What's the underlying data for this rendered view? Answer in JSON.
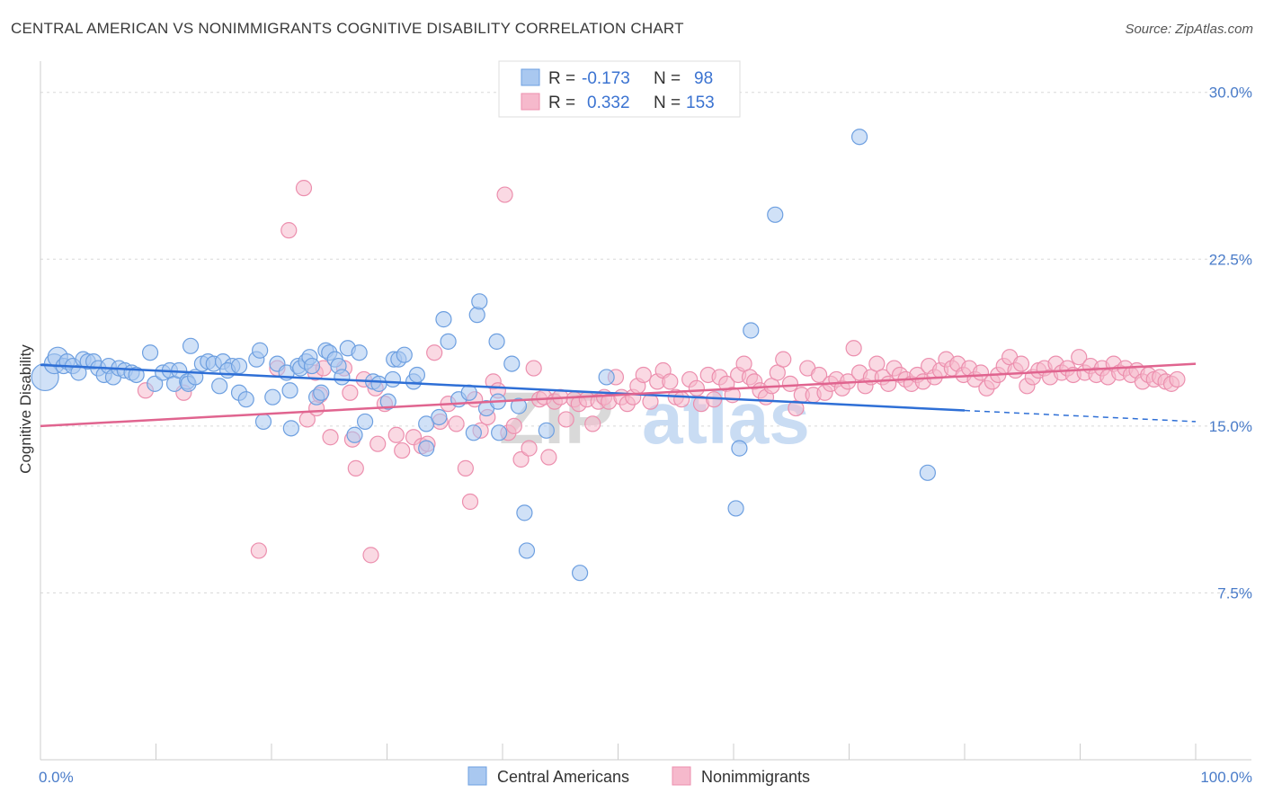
{
  "title": "CENTRAL AMERICAN VS NONIMMIGRANTS COGNITIVE DISABILITY CORRELATION CHART",
  "source": "Source: ZipAtlas.com",
  "watermark": {
    "zip": "ZIP",
    "atlas": "atlas"
  },
  "colors": {
    "blue_fill": "#a9c8f0",
    "blue_stroke": "#6d9fe0",
    "blue_line": "#2e6fd6",
    "pink_fill": "#f6b9cc",
    "pink_stroke": "#ec8fae",
    "pink_line": "#e0648f",
    "tick_text": "#4a7cc9",
    "grid": "#d8d8d8"
  },
  "legend": {
    "rows": [
      {
        "r_label": "R =",
        "r_value": "-0.173",
        "n_label": "N =",
        "n_value": "98"
      },
      {
        "r_label": "R =",
        "r_value": "0.332",
        "n_label": "N =",
        "n_value": "153"
      }
    ]
  },
  "bottom_legend": [
    "Central Americans",
    "Nonimmigrants"
  ],
  "chart_data": {
    "type": "scatter",
    "title": "CENTRAL AMERICAN VS NONIMMIGRANTS COGNITIVE DISABILITY CORRELATION CHART",
    "xlabel": "",
    "ylabel": "Cognitive Disability",
    "xlim": [
      0,
      100
    ],
    "ylim": [
      0,
      31
    ],
    "x_tick_labels": [
      "0.0%",
      "100.0%"
    ],
    "y_ticks": [
      7.5,
      15.0,
      22.5,
      30.0
    ],
    "y_tick_labels": [
      "7.5%",
      "15.0%",
      "22.5%",
      "30.0%"
    ],
    "grid": true,
    "legend_placement": "top-center",
    "series": [
      {
        "name": "Central Americans",
        "r": -0.173,
        "n": 98,
        "trend": {
          "x": [
            0,
            80
          ],
          "y": [
            17.75,
            15.7
          ],
          "dashed_extension_to_x": 100,
          "dashed_end_y": 15.2
        },
        "points": [
          [
            0.4,
            17.2
          ],
          [
            1.2,
            17.8
          ],
          [
            1.5,
            18.1
          ],
          [
            2.0,
            17.7
          ],
          [
            2.3,
            17.9
          ],
          [
            2.8,
            17.7
          ],
          [
            3.3,
            17.4
          ],
          [
            3.7,
            18.0
          ],
          [
            4.1,
            17.9
          ],
          [
            4.6,
            17.9
          ],
          [
            5.0,
            17.6
          ],
          [
            5.5,
            17.3
          ],
          [
            5.9,
            17.7
          ],
          [
            6.3,
            17.2
          ],
          [
            6.8,
            17.6
          ],
          [
            7.3,
            17.5
          ],
          [
            7.9,
            17.4
          ],
          [
            8.3,
            17.3
          ],
          [
            9.5,
            18.3
          ],
          [
            9.9,
            16.9
          ],
          [
            10.6,
            17.4
          ],
          [
            11.2,
            17.5
          ],
          [
            11.6,
            16.9
          ],
          [
            12.0,
            17.5
          ],
          [
            12.7,
            17.0
          ],
          [
            12.8,
            16.9
          ],
          [
            13.0,
            18.6
          ],
          [
            13.4,
            17.2
          ],
          [
            14.0,
            17.8
          ],
          [
            14.5,
            17.9
          ],
          [
            15.0,
            17.8
          ],
          [
            15.5,
            16.8
          ],
          [
            15.8,
            17.9
          ],
          [
            16.6,
            17.7
          ],
          [
            16.2,
            17.5
          ],
          [
            17.2,
            17.7
          ],
          [
            17.2,
            16.5
          ],
          [
            17.8,
            16.2
          ],
          [
            18.7,
            18.0
          ],
          [
            19.0,
            18.4
          ],
          [
            19.3,
            15.2
          ],
          [
            20.1,
            16.3
          ],
          [
            20.5,
            17.8
          ],
          [
            21.3,
            17.4
          ],
          [
            21.6,
            16.6
          ],
          [
            21.7,
            14.9
          ],
          [
            22.3,
            17.7
          ],
          [
            22.5,
            17.6
          ],
          [
            23.0,
            17.9
          ],
          [
            23.3,
            18.1
          ],
          [
            23.5,
            17.7
          ],
          [
            23.9,
            16.3
          ],
          [
            24.3,
            16.5
          ],
          [
            24.7,
            18.4
          ],
          [
            25.0,
            18.3
          ],
          [
            25.5,
            18.0
          ],
          [
            25.8,
            17.7
          ],
          [
            26.1,
            17.2
          ],
          [
            26.6,
            18.5
          ],
          [
            27.2,
            14.6
          ],
          [
            27.6,
            18.3
          ],
          [
            28.1,
            15.2
          ],
          [
            28.8,
            17.0
          ],
          [
            29.3,
            16.9
          ],
          [
            30.1,
            16.1
          ],
          [
            30.5,
            17.1
          ],
          [
            30.6,
            18.0
          ],
          [
            31.0,
            18.0
          ],
          [
            31.5,
            18.2
          ],
          [
            32.3,
            17.0
          ],
          [
            32.6,
            17.3
          ],
          [
            33.4,
            14.0
          ],
          [
            33.4,
            15.1
          ],
          [
            34.5,
            15.4
          ],
          [
            34.9,
            19.8
          ],
          [
            35.3,
            18.8
          ],
          [
            36.2,
            16.2
          ],
          [
            37.1,
            16.5
          ],
          [
            37.5,
            14.7
          ],
          [
            37.8,
            20.0
          ],
          [
            38.0,
            20.6
          ],
          [
            38.6,
            15.8
          ],
          [
            39.5,
            18.8
          ],
          [
            39.6,
            16.1
          ],
          [
            39.7,
            14.7
          ],
          [
            40.8,
            17.8
          ],
          [
            41.4,
            15.9
          ],
          [
            41.9,
            11.1
          ],
          [
            42.1,
            9.4
          ],
          [
            43.8,
            14.8
          ],
          [
            46.7,
            8.4
          ],
          [
            49.0,
            17.2
          ],
          [
            60.5,
            14.0
          ],
          [
            60.2,
            11.3
          ],
          [
            61.5,
            19.3
          ],
          [
            76.8,
            12.9
          ],
          [
            70.9,
            28.0
          ],
          [
            63.6,
            24.5
          ]
        ]
      },
      {
        "name": "Nonimmigrants",
        "r": 0.332,
        "n": 153,
        "trend": {
          "x": [
            0,
            100
          ],
          "y": [
            15.0,
            17.8
          ]
        },
        "points": [
          [
            9.1,
            16.6
          ],
          [
            12.4,
            16.5
          ],
          [
            18.9,
            9.4
          ],
          [
            20.5,
            17.6
          ],
          [
            21.5,
            23.8
          ],
          [
            22.8,
            25.7
          ],
          [
            23.1,
            15.3
          ],
          [
            23.8,
            17.4
          ],
          [
            23.9,
            15.8
          ],
          [
            24.2,
            16.4
          ],
          [
            24.5,
            17.6
          ],
          [
            25.1,
            14.5
          ],
          [
            26.3,
            17.6
          ],
          [
            26.8,
            16.5
          ],
          [
            27.0,
            14.4
          ],
          [
            27.3,
            13.1
          ],
          [
            28.0,
            17.1
          ],
          [
            28.6,
            9.2
          ],
          [
            29.0,
            16.7
          ],
          [
            29.2,
            14.2
          ],
          [
            29.8,
            16.0
          ],
          [
            30.8,
            14.6
          ],
          [
            31.3,
            13.9
          ],
          [
            32.3,
            14.5
          ],
          [
            33.0,
            14.1
          ],
          [
            33.5,
            14.2
          ],
          [
            34.1,
            18.3
          ],
          [
            34.6,
            15.2
          ],
          [
            35.3,
            16.0
          ],
          [
            36.0,
            15.1
          ],
          [
            36.8,
            13.1
          ],
          [
            37.2,
            11.6
          ],
          [
            37.6,
            16.2
          ],
          [
            38.1,
            14.8
          ],
          [
            38.7,
            15.4
          ],
          [
            39.2,
            17.0
          ],
          [
            39.6,
            16.6
          ],
          [
            40.2,
            25.4
          ],
          [
            40.5,
            14.7
          ],
          [
            41.0,
            15.0
          ],
          [
            41.6,
            13.5
          ],
          [
            42.3,
            14.0
          ],
          [
            42.7,
            17.6
          ],
          [
            43.2,
            16.2
          ],
          [
            43.6,
            16.3
          ],
          [
            44.0,
            13.6
          ],
          [
            44.5,
            16.1
          ],
          [
            45.0,
            16.3
          ],
          [
            45.5,
            15.3
          ],
          [
            46.2,
            16.2
          ],
          [
            46.6,
            16.0
          ],
          [
            47.3,
            16.2
          ],
          [
            47.8,
            15.1
          ],
          [
            48.3,
            16.1
          ],
          [
            48.8,
            16.3
          ],
          [
            49.2,
            16.1
          ],
          [
            49.8,
            17.2
          ],
          [
            50.3,
            16.3
          ],
          [
            50.8,
            16.0
          ],
          [
            51.3,
            16.3
          ],
          [
            51.7,
            16.8
          ],
          [
            52.2,
            17.3
          ],
          [
            52.8,
            16.1
          ],
          [
            53.4,
            17.0
          ],
          [
            53.9,
            17.5
          ],
          [
            54.5,
            17.0
          ],
          [
            55.0,
            16.3
          ],
          [
            55.5,
            16.2
          ],
          [
            56.2,
            17.1
          ],
          [
            56.8,
            16.7
          ],
          [
            57.2,
            16.0
          ],
          [
            57.8,
            17.3
          ],
          [
            58.3,
            16.2
          ],
          [
            58.8,
            17.2
          ],
          [
            59.4,
            16.9
          ],
          [
            59.9,
            16.4
          ],
          [
            60.4,
            17.3
          ],
          [
            60.9,
            17.8
          ],
          [
            61.4,
            17.2
          ],
          [
            61.8,
            17.0
          ],
          [
            62.3,
            16.6
          ],
          [
            62.8,
            16.3
          ],
          [
            63.3,
            16.8
          ],
          [
            63.8,
            17.4
          ],
          [
            64.3,
            18.0
          ],
          [
            64.9,
            16.9
          ],
          [
            65.4,
            15.8
          ],
          [
            65.9,
            16.4
          ],
          [
            66.4,
            17.6
          ],
          [
            66.9,
            16.4
          ],
          [
            67.4,
            17.3
          ],
          [
            67.9,
            16.5
          ],
          [
            68.4,
            16.9
          ],
          [
            68.9,
            17.1
          ],
          [
            69.4,
            16.7
          ],
          [
            69.9,
            17.0
          ],
          [
            70.4,
            18.5
          ],
          [
            70.9,
            17.4
          ],
          [
            71.4,
            16.8
          ],
          [
            71.9,
            17.2
          ],
          [
            72.4,
            17.8
          ],
          [
            72.9,
            17.2
          ],
          [
            73.4,
            16.9
          ],
          [
            73.9,
            17.6
          ],
          [
            74.4,
            17.3
          ],
          [
            74.9,
            17.1
          ],
          [
            75.4,
            16.9
          ],
          [
            75.9,
            17.3
          ],
          [
            76.4,
            17.0
          ],
          [
            76.9,
            17.7
          ],
          [
            77.4,
            17.2
          ],
          [
            77.9,
            17.5
          ],
          [
            78.4,
            18.0
          ],
          [
            78.9,
            17.6
          ],
          [
            79.4,
            17.8
          ],
          [
            79.9,
            17.3
          ],
          [
            80.4,
            17.6
          ],
          [
            80.9,
            17.1
          ],
          [
            81.4,
            17.4
          ],
          [
            81.9,
            16.7
          ],
          [
            82.4,
            17.0
          ],
          [
            82.9,
            17.3
          ],
          [
            83.4,
            17.7
          ],
          [
            83.9,
            18.1
          ],
          [
            84.4,
            17.5
          ],
          [
            84.9,
            17.8
          ],
          [
            85.4,
            16.8
          ],
          [
            85.9,
            17.2
          ],
          [
            86.4,
            17.5
          ],
          [
            86.9,
            17.6
          ],
          [
            87.4,
            17.2
          ],
          [
            87.9,
            17.8
          ],
          [
            88.4,
            17.4
          ],
          [
            88.9,
            17.6
          ],
          [
            89.4,
            17.3
          ],
          [
            89.9,
            18.1
          ],
          [
            90.4,
            17.4
          ],
          [
            90.9,
            17.7
          ],
          [
            91.4,
            17.3
          ],
          [
            91.9,
            17.6
          ],
          [
            92.4,
            17.2
          ],
          [
            92.9,
            17.8
          ],
          [
            93.4,
            17.4
          ],
          [
            93.9,
            17.6
          ],
          [
            94.4,
            17.3
          ],
          [
            94.9,
            17.5
          ],
          [
            95.4,
            17.0
          ],
          [
            95.9,
            17.3
          ],
          [
            96.4,
            17.1
          ],
          [
            96.9,
            17.2
          ],
          [
            97.4,
            17.0
          ],
          [
            97.9,
            16.9
          ],
          [
            98.4,
            17.1
          ]
        ]
      }
    ]
  }
}
